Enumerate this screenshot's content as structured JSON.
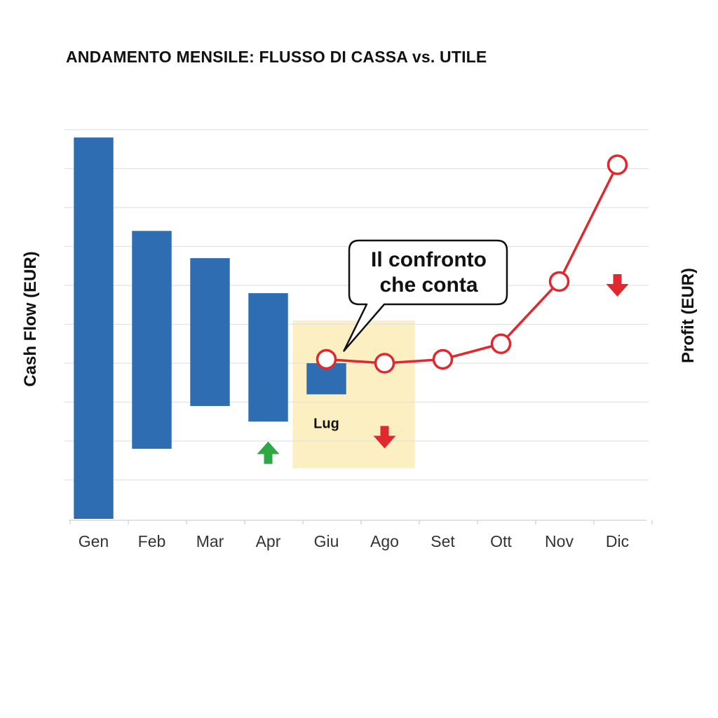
{
  "chart_data": {
    "type": "bar",
    "title": "ANDAMENTO MENSILE: FLUSSO DI CASSA vs. UTILE",
    "ylabel_left": "Cash Flow (EUR)",
    "ylabel_right": "Profit (EUR)",
    "categories": [
      "Gen",
      "Feb",
      "Mar",
      "Apr",
      "Giu",
      "Ago",
      "Set",
      "Ott",
      "Nov",
      "Dic"
    ],
    "grid": true,
    "left_axis_range": [
      0,
      10
    ],
    "right_axis_range": [
      0,
      10
    ],
    "series": [
      {
        "kind": "floating-bar",
        "color": "#2f6db2",
        "points": [
          {
            "category": "Gen",
            "low": 0.0,
            "high": 9.8
          },
          {
            "category": "Feb",
            "low": 1.8,
            "high": 7.4
          },
          {
            "category": "Mar",
            "low": 2.9,
            "high": 6.7
          },
          {
            "category": "Apr",
            "low": 2.5,
            "high": 5.8
          },
          {
            "category": "Giu",
            "low": 3.2,
            "high": 4.0,
            "label": "Lug"
          }
        ]
      },
      {
        "kind": "line",
        "color": "#e0282e",
        "points": [
          {
            "category": "Giu",
            "value": 4.1
          },
          {
            "category": "Ago",
            "value": 4.0
          },
          {
            "category": "Set",
            "value": 4.1
          },
          {
            "category": "Ott",
            "value": 4.5
          },
          {
            "category": "Nov",
            "value": 6.1
          },
          {
            "category": "Dic",
            "value": 9.1
          }
        ]
      }
    ],
    "highlight": {
      "from": "Giu",
      "to": "Ago",
      "low": 1.3,
      "high": 5.1,
      "color": "#fcefc2"
    },
    "callout": {
      "lines": [
        "Il confronto",
        "che conta"
      ],
      "anchor_category": "Giu",
      "anchor_value": 4.1
    },
    "markers": [
      {
        "type": "arrow-up",
        "category": "Apr",
        "value": 1.7,
        "color": "#2ea844"
      },
      {
        "type": "arrow-down",
        "category": "Ago",
        "value": 2.1,
        "color": "#e0282e"
      },
      {
        "type": "arrow-down",
        "category": "Dic",
        "value": 6.0,
        "color": "#e0282e"
      }
    ]
  }
}
